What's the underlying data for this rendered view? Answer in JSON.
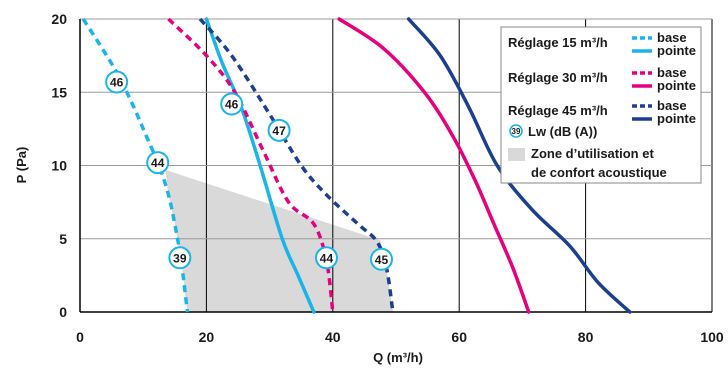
{
  "chart_data": {
    "type": "line",
    "xlabel": "Q (m³/h)",
    "ylabel": "P (Pa)",
    "xlim": [
      0,
      100
    ],
    "ylim": [
      0,
      20
    ],
    "x_ticks": [
      "0",
      "20",
      "40",
      "60",
      "80",
      "100"
    ],
    "y_ticks": [
      "0",
      "5",
      "10",
      "15",
      "20"
    ],
    "grid": "vertical lines at 20, 40, 60, 80, 100; horizontal lines at 5, 10, 15, 20",
    "legend_placement": "top-right",
    "colors": {
      "reglage15": "#1ab4e8",
      "reglage30": "#e5007e",
      "reglage45": "#1d3f8f",
      "zone": "#d9d9d9",
      "marker_border": "#1ab4e8",
      "grid": "#000000"
    },
    "series": [
      {
        "key": "r15-base",
        "group": "Réglage 15 m³/h",
        "name": "base",
        "style": "dashed",
        "color": "#1ab4e8",
        "points": [
          [
            0.5,
            20
          ],
          [
            3.5,
            18
          ],
          [
            6,
            16.2
          ],
          [
            8.5,
            14
          ],
          [
            10.5,
            12
          ],
          [
            12.5,
            10
          ],
          [
            14,
            8
          ],
          [
            15,
            6
          ],
          [
            16,
            3.5
          ],
          [
            17,
            0
          ]
        ]
      },
      {
        "key": "r15-pointe",
        "group": "Réglage 15 m³/h",
        "name": "pointe",
        "style": "solid",
        "color": "#1ab4e8",
        "points": [
          [
            20,
            20
          ],
          [
            22.5,
            17
          ],
          [
            25.5,
            14
          ],
          [
            28.5,
            10
          ],
          [
            32,
            5
          ],
          [
            34.5,
            2.5
          ],
          [
            37,
            0
          ]
        ]
      },
      {
        "key": "r30-base",
        "group": "Réglage 30 m³/h",
        "name": "base",
        "style": "dashed",
        "color": "#e5007e",
        "points": [
          [
            14,
            20
          ],
          [
            20,
            17.5
          ],
          [
            24.5,
            15
          ],
          [
            29,
            11
          ],
          [
            33,
            7.5
          ],
          [
            37,
            6
          ],
          [
            39,
            3.5
          ],
          [
            40,
            0
          ]
        ]
      },
      {
        "key": "r30-pointe",
        "group": "Réglage 30 m³/h",
        "name": "pointe",
        "style": "solid",
        "color": "#e5007e",
        "points": [
          [
            41,
            20
          ],
          [
            48,
            18
          ],
          [
            54.5,
            15
          ],
          [
            59,
            12
          ],
          [
            62.5,
            9
          ],
          [
            65.5,
            6
          ],
          [
            68.5,
            3
          ],
          [
            71,
            0
          ]
        ]
      },
      {
        "key": "r45-base",
        "group": "Réglage 45 m³/h",
        "name": "base",
        "style": "dashed",
        "color": "#1d3f8f",
        "points": [
          [
            19,
            20
          ],
          [
            24,
            17.5
          ],
          [
            30,
            13.5
          ],
          [
            35,
            10
          ],
          [
            39,
            8
          ],
          [
            44,
            6
          ],
          [
            47,
            4.8
          ],
          [
            48.5,
            3
          ],
          [
            49.5,
            0
          ]
        ]
      },
      {
        "key": "r45-pointe",
        "group": "Réglage 45 m³/h",
        "name": "pointe",
        "style": "solid",
        "color": "#1d3f8f",
        "points": [
          [
            52,
            20
          ],
          [
            57,
            17.5
          ],
          [
            61.5,
            14
          ],
          [
            66,
            10
          ],
          [
            71.5,
            7
          ],
          [
            77.5,
            4.5
          ],
          [
            82,
            2
          ],
          [
            87,
            0
          ]
        ]
      }
    ],
    "zone": {
      "label": "Zone d’utilisation et de confort acoustique",
      "polygon": [
        [
          13.5,
          9.7
        ],
        [
          47.5,
          4.9
        ],
        [
          48.5,
          3
        ],
        [
          49.5,
          0
        ],
        [
          17,
          0
        ],
        [
          16,
          3.5
        ],
        [
          15,
          6
        ],
        [
          14,
          8
        ]
      ]
    },
    "markers": [
      {
        "x": 5.8,
        "y": 15.7,
        "label": "46"
      },
      {
        "x": 12.3,
        "y": 10.2,
        "label": "44"
      },
      {
        "x": 15.8,
        "y": 3.7,
        "label": "39"
      },
      {
        "x": 24,
        "y": 14.2,
        "label": "46"
      },
      {
        "x": 31.5,
        "y": 12.4,
        "label": "47"
      },
      {
        "x": 39,
        "y": 3.7,
        "label": "44"
      },
      {
        "x": 47.7,
        "y": 3.6,
        "label": "45"
      }
    ],
    "legend": {
      "groups": [
        {
          "label": "Réglage 15 m³/h",
          "color": "#1ab4e8",
          "base": "base",
          "pointe": "pointe"
        },
        {
          "label": "Réglage 30 m³/h",
          "color": "#e5007e",
          "base": "base",
          "pointe": "pointe"
        },
        {
          "label": "Réglage 45 m³/h",
          "color": "#1d3f8f",
          "base": "base",
          "pointe": "pointe"
        }
      ],
      "lw_marker": "39",
      "lw_label": "Lw (dB (A))",
      "zone_line1": "Zone d’utilisation et",
      "zone_line2": "de confort acoustique"
    }
  }
}
